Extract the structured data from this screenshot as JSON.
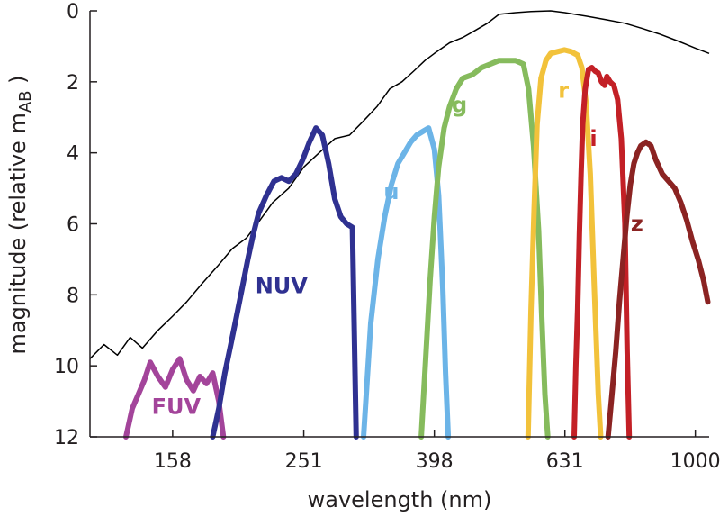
{
  "chart_data": {
    "type": "line",
    "xlabel": "wavelength (nm)",
    "ylabel_main": "magnitude (relative  m",
    "ylabel_sub": "AB",
    "ylabel_close": " )",
    "x_scale": "log",
    "xlim": [
      118,
      1050
    ],
    "ylim": [
      12,
      0
    ],
    "x_ticks": [
      158,
      251,
      398,
      631,
      1000
    ],
    "y_ticks": [
      0,
      2,
      4,
      6,
      8,
      10,
      12
    ],
    "grid": false,
    "legend": "none",
    "spectrum": {
      "color": "#000000",
      "x": [
        118,
        124,
        130,
        136,
        142,
        150,
        158,
        166,
        175,
        185,
        195,
        205,
        215,
        225,
        238,
        251,
        265,
        280,
        295,
        310,
        325,
        340,
        355,
        370,
        385,
        398,
        420,
        440,
        460,
        480,
        500,
        530,
        560,
        600,
        631,
        680,
        730,
        780,
        830,
        880,
        940,
        1000,
        1050
      ],
      "y": [
        9.8,
        9.4,
        9.7,
        9.2,
        9.5,
        9.0,
        8.6,
        8.2,
        7.7,
        7.2,
        6.7,
        6.4,
        5.9,
        5.4,
        5.0,
        4.4,
        4.0,
        3.6,
        3.5,
        3.1,
        2.7,
        2.2,
        2.0,
        1.7,
        1.4,
        1.2,
        0.9,
        0.75,
        0.55,
        0.35,
        0.1,
        0.05,
        0.02,
        0.0,
        0.05,
        0.15,
        0.25,
        0.35,
        0.5,
        0.65,
        0.85,
        1.05,
        1.2
      ]
    },
    "series": [
      {
        "name": "FUV",
        "color": "#a3449a",
        "label_at": [
          160,
          11.35
        ],
        "x": [
          134,
          137,
          140,
          143,
          146,
          150,
          154,
          158,
          162,
          166,
          170,
          174,
          178,
          182,
          186,
          189
        ],
        "y": [
          12,
          11.2,
          10.8,
          10.4,
          9.9,
          10.3,
          10.6,
          10.1,
          9.8,
          10.4,
          10.7,
          10.3,
          10.5,
          10.2,
          11.0,
          12
        ]
      },
      {
        "name": "NUV",
        "color": "#2f3191",
        "label_at": [
          232,
          7.95
        ],
        "x": [
          182,
          186,
          190,
          194,
          198,
          202,
          206,
          210,
          214,
          220,
          226,
          232,
          238,
          244,
          250,
          256,
          262,
          268,
          274,
          280,
          286,
          292,
          298,
          302
        ],
        "y": [
          12,
          11.2,
          10.2,
          9.4,
          8.6,
          7.8,
          7.0,
          6.3,
          5.7,
          5.2,
          4.8,
          4.7,
          4.8,
          4.6,
          4.2,
          3.7,
          3.3,
          3.5,
          4.3,
          5.3,
          5.8,
          6.0,
          6.1,
          12
        ]
      },
      {
        "name": "u",
        "color": "#6cb4e7",
        "label_at": [
          342,
          5.3
        ],
        "x": [
          310,
          318,
          326,
          334,
          342,
          350,
          358,
          366,
          374,
          382,
          390,
          398,
          404,
          410,
          414,
          418
        ],
        "y": [
          12,
          8.8,
          7.0,
          5.8,
          4.9,
          4.3,
          4.0,
          3.7,
          3.5,
          3.4,
          3.3,
          3.9,
          5.2,
          7.8,
          10.2,
          12
        ]
      },
      {
        "name": "g",
        "color": "#86bb5d",
        "label_at": [
          435,
          2.85
        ],
        "x": [
          380,
          386,
          392,
          398,
          404,
          412,
          420,
          430,
          440,
          455,
          470,
          485,
          500,
          515,
          530,
          545,
          555,
          565,
          575,
          582,
          588,
          594
        ],
        "y": [
          12,
          9.8,
          7.6,
          5.8,
          4.4,
          3.3,
          2.7,
          2.2,
          1.9,
          1.8,
          1.6,
          1.5,
          1.4,
          1.4,
          1.4,
          1.5,
          2.2,
          3.8,
          6.2,
          8.8,
          10.8,
          12
        ]
      },
      {
        "name": "r",
        "color": "#f2c23b",
        "label_at": [
          628,
          2.45
        ],
        "x": [
          554,
          560,
          566,
          572,
          580,
          590,
          600,
          615,
          630,
          645,
          660,
          670,
          680,
          690,
          700,
          710,
          716
        ],
        "y": [
          12,
          8.4,
          5.6,
          3.2,
          1.9,
          1.4,
          1.2,
          1.15,
          1.1,
          1.15,
          1.25,
          1.6,
          2.6,
          4.6,
          7.8,
          10.8,
          12
        ]
      },
      {
        "name": "i",
        "color": "#c32026",
        "label_at": [
          698,
          3.8
        ],
        "x": [
          652,
          656,
          660,
          664,
          668,
          672,
          678,
          686,
          694,
          702,
          710,
          718,
          726,
          732,
          740,
          750,
          760,
          770,
          780,
          786,
          792
        ],
        "y": [
          12,
          10.0,
          8.4,
          6.3,
          4.6,
          3.2,
          2.2,
          1.65,
          1.6,
          1.7,
          1.75,
          2.0,
          2.1,
          1.85,
          2.0,
          2.1,
          2.5,
          3.6,
          6.0,
          9.6,
          12
        ]
      },
      {
        "name": "z",
        "color": "#8b2322",
        "label_at": [
          814,
          6.2
        ],
        "x": [
          735,
          745,
          755,
          765,
          775,
          785,
          795,
          805,
          815,
          825,
          840,
          855,
          870,
          890,
          910,
          930,
          950,
          970,
          990,
          1010,
          1030,
          1045
        ],
        "y": [
          12,
          10.8,
          9.6,
          8.2,
          7.0,
          5.8,
          4.9,
          4.3,
          4.0,
          3.8,
          3.7,
          3.8,
          4.2,
          4.6,
          4.8,
          5.0,
          5.4,
          5.9,
          6.5,
          7.0,
          7.6,
          8.2
        ]
      }
    ]
  }
}
